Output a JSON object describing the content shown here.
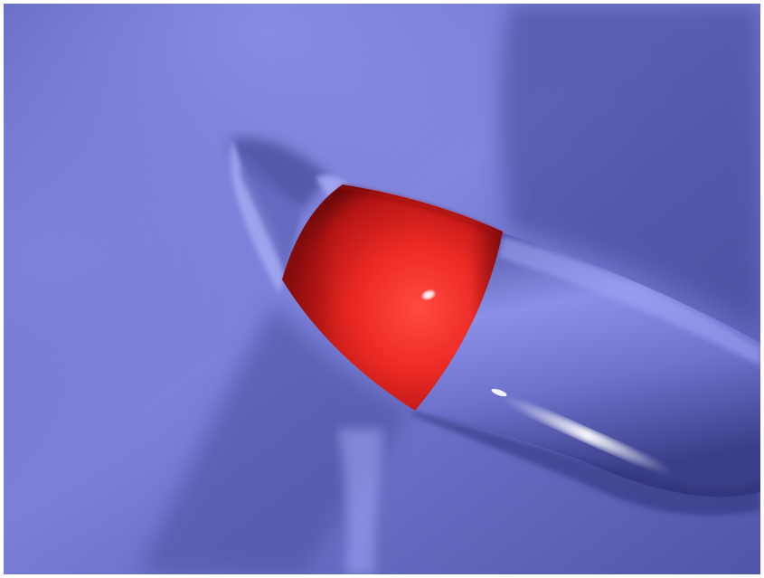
{
  "scene": {
    "description_kind": "3d-render",
    "colors": {
      "frame": "#ffffff",
      "surface_base": "#6e73cc",
      "surface_light": "#9aa0f2",
      "surface_dark": "#3a3d86",
      "object_red": "#e81e1e",
      "object_red_light": "#ff5a50",
      "object_red_dark": "#7a0b0b",
      "specular": "#ffffff"
    }
  }
}
